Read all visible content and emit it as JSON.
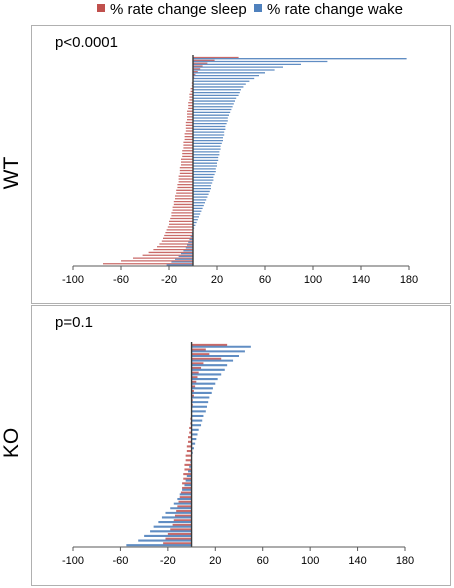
{
  "legend": [
    {
      "label": "% rate change sleep",
      "color": "#c0504d"
    },
    {
      "label": "% rate change wake",
      "color": "#4f81bd"
    }
  ],
  "chart_data": [
    {
      "type": "bar",
      "orientation": "horizontal",
      "group_label": "WT",
      "annotation": "p<0.0001",
      "xlim": [
        -100,
        180
      ],
      "xticks": [
        -100,
        -60,
        -20,
        20,
        60,
        100,
        140,
        180
      ],
      "grid": false,
      "legend_placement": "top",
      "series": [
        {
          "name": "% rate change sleep",
          "color": "#c0504d",
          "values": [
            38,
            18,
            12,
            8,
            6,
            4,
            2,
            1,
            0,
            -1,
            -1,
            -2,
            -2,
            -3,
            -3,
            -3,
            -4,
            -4,
            -4,
            -5,
            -5,
            -5,
            -5,
            -6,
            -6,
            -6,
            -6,
            -7,
            -7,
            -7,
            -8,
            -8,
            -8,
            -9,
            -9,
            -9,
            -10,
            -10,
            -10,
            -11,
            -11,
            -11,
            -12,
            -12,
            -12,
            -13,
            -13,
            -14,
            -14,
            -15,
            -15,
            -16,
            -16,
            -17,
            -17,
            -18,
            -18,
            -19,
            -20,
            -20,
            -21,
            -22,
            -23,
            -24,
            -25,
            -26,
            -28,
            -30,
            -33,
            -37,
            -42,
            -50,
            -60,
            -75
          ]
        },
        {
          "name": "% rate change wake",
          "color": "#4f81bd",
          "values": [
            178,
            112,
            90,
            75,
            68,
            60,
            55,
            51,
            47,
            44,
            42,
            40,
            39,
            38,
            36,
            35,
            34,
            33,
            32,
            31,
            30,
            29,
            29,
            28,
            27,
            27,
            26,
            26,
            25,
            25,
            24,
            23,
            23,
            22,
            22,
            21,
            21,
            20,
            20,
            19,
            19,
            18,
            17,
            17,
            16,
            15,
            15,
            14,
            13,
            12,
            11,
            10,
            9,
            8,
            7,
            6,
            5,
            4,
            3,
            2,
            1,
            0,
            -1,
            -2,
            -3,
            -4,
            -5,
            -6,
            -8,
            -10,
            -12,
            -15,
            -18,
            -22
          ]
        }
      ]
    },
    {
      "type": "bar",
      "orientation": "horizontal",
      "group_label": "KO",
      "annotation": "p=0.1",
      "xlim": [
        -100,
        180
      ],
      "xticks": [
        -100,
        -60,
        -20,
        20,
        60,
        100,
        140,
        180
      ],
      "grid": false,
      "legend_placement": "top",
      "series": [
        {
          "name": "% rate change sleep",
          "color": "#c0504d",
          "values": [
            30,
            12,
            15,
            25,
            10,
            8,
            6,
            5,
            4,
            3,
            2,
            2,
            1,
            1,
            0,
            0,
            -1,
            -1,
            -2,
            -2,
            -3,
            -3,
            -4,
            -4,
            -5,
            -5,
            -6,
            -6,
            -7,
            -7,
            -8,
            -8,
            -9,
            -10,
            -11,
            -12,
            -13,
            -14,
            -15,
            -16,
            -18,
            -20,
            -22,
            -24
          ]
        },
        {
          "name": "% rate change wake",
          "color": "#4f81bd",
          "values": [
            50,
            45,
            40,
            35,
            30,
            28,
            25,
            22,
            20,
            18,
            17,
            15,
            14,
            13,
            12,
            10,
            9,
            8,
            6,
            5,
            4,
            3,
            2,
            1,
            0,
            -1,
            -2,
            -3,
            -4,
            -5,
            -6,
            -8,
            -10,
            -12,
            -15,
            -18,
            -22,
            -25,
            -28,
            -32,
            -35,
            -40,
            -45,
            -55
          ]
        }
      ]
    }
  ]
}
